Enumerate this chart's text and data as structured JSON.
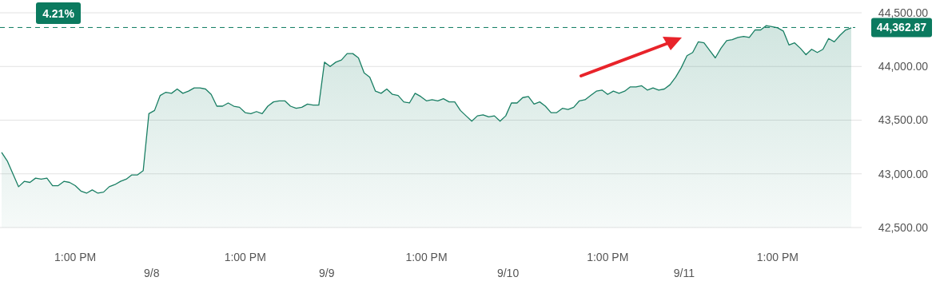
{
  "chart_data": {
    "type": "area",
    "categories": [
      null,
      null,
      null,
      null,
      null,
      null,
      null,
      null,
      null,
      null,
      null,
      null,
      null,
      "1:00 PM",
      null,
      null,
      null,
      null,
      null,
      null,
      null,
      null,
      null,
      null,
      null,
      null,
      null,
      null,
      null,
      null,
      null,
      null,
      null,
      null,
      null,
      null,
      null,
      null,
      null,
      null,
      null,
      null,
      null,
      "1:00 PM",
      null,
      null,
      null,
      null,
      null,
      null,
      null,
      null,
      null,
      null,
      null,
      null,
      null,
      null,
      null,
      null,
      null,
      null,
      null,
      null,
      null,
      null,
      null,
      null,
      null,
      null,
      null,
      null,
      null,
      null,
      null,
      "1:00 PM",
      null,
      null,
      null,
      null,
      null,
      null,
      null,
      null,
      null,
      null,
      null,
      null,
      null,
      null,
      null,
      null,
      null,
      null,
      null,
      null,
      null,
      null,
      null,
      null,
      null,
      null,
      null,
      null,
      null,
      null,
      null,
      "1:00 PM",
      null,
      null,
      null,
      null,
      null,
      null,
      null,
      null,
      null,
      null,
      null,
      null,
      null,
      null,
      null,
      null,
      null,
      null,
      null,
      null,
      null,
      null,
      null,
      null,
      null,
      null,
      null,
      null,
      null,
      "1:00 PM",
      null,
      null,
      null,
      null,
      null,
      null,
      null,
      null,
      null,
      null,
      null,
      null,
      null
    ],
    "series": [
      {
        "color": "#1a7f64",
        "values": [
          43200,
          43120,
          43000,
          42880,
          42930,
          42920,
          42960,
          42950,
          42960,
          42890,
          42890,
          42930,
          42920,
          42890,
          42840,
          42820,
          42850,
          42820,
          42830,
          42880,
          42900,
          42930,
          42950,
          42990,
          42990,
          43030,
          43560,
          43590,
          43730,
          43760,
          43750,
          43790,
          43750,
          43770,
          43800,
          43800,
          43790,
          43740,
          43630,
          43630,
          43660,
          43630,
          43620,
          43570,
          43560,
          43580,
          43560,
          43630,
          43670,
          43680,
          43680,
          43630,
          43610,
          43620,
          43650,
          43640,
          43640,
          44040,
          44000,
          44040,
          44060,
          44120,
          44120,
          44080,
          43940,
          43900,
          43770,
          43750,
          43790,
          43740,
          43730,
          43670,
          43660,
          43750,
          43720,
          43680,
          43690,
          43680,
          43700,
          43670,
          43670,
          43590,
          43540,
          43490,
          43540,
          43550,
          43530,
          43540,
          43490,
          43540,
          43660,
          43660,
          43710,
          43720,
          43650,
          43670,
          43630,
          43570,
          43570,
          43610,
          43600,
          43620,
          43680,
          43690,
          43730,
          43770,
          43780,
          43740,
          43770,
          43750,
          43770,
          43810,
          43810,
          43820,
          43780,
          43800,
          43780,
          43790,
          43830,
          43900,
          43990,
          44100,
          44130,
          44230,
          44220,
          44150,
          44080,
          44170,
          44240,
          44250,
          44270,
          44280,
          44270,
          44340,
          44340,
          44380,
          44370,
          44360,
          44330,
          44200,
          44220,
          44170,
          44110,
          44160,
          44130,
          44160,
          44260,
          44230,
          44290,
          44340,
          44360
        ]
      }
    ],
    "ylim": [
      42500,
      44500
    ],
    "yticks": [
      {
        "value": 42500,
        "label": "42,500.00"
      },
      {
        "value": 43000,
        "label": "43,000.00"
      },
      {
        "value": 43500,
        "label": "43,500.00"
      },
      {
        "value": 44000,
        "label": "44,000.00"
      },
      {
        "value": 44500,
        "label": "44,500.00"
      }
    ],
    "grid": "y",
    "ref_lines": [
      {
        "axis": "y",
        "value": 44362.87,
        "label": "44,362.87",
        "color": "#0b7a5f",
        "line_style": "dashed"
      }
    ],
    "annotations": [
      "4.21%",
      "9/8",
      "9/9",
      "9/10",
      "9/11"
    ]
  }
}
